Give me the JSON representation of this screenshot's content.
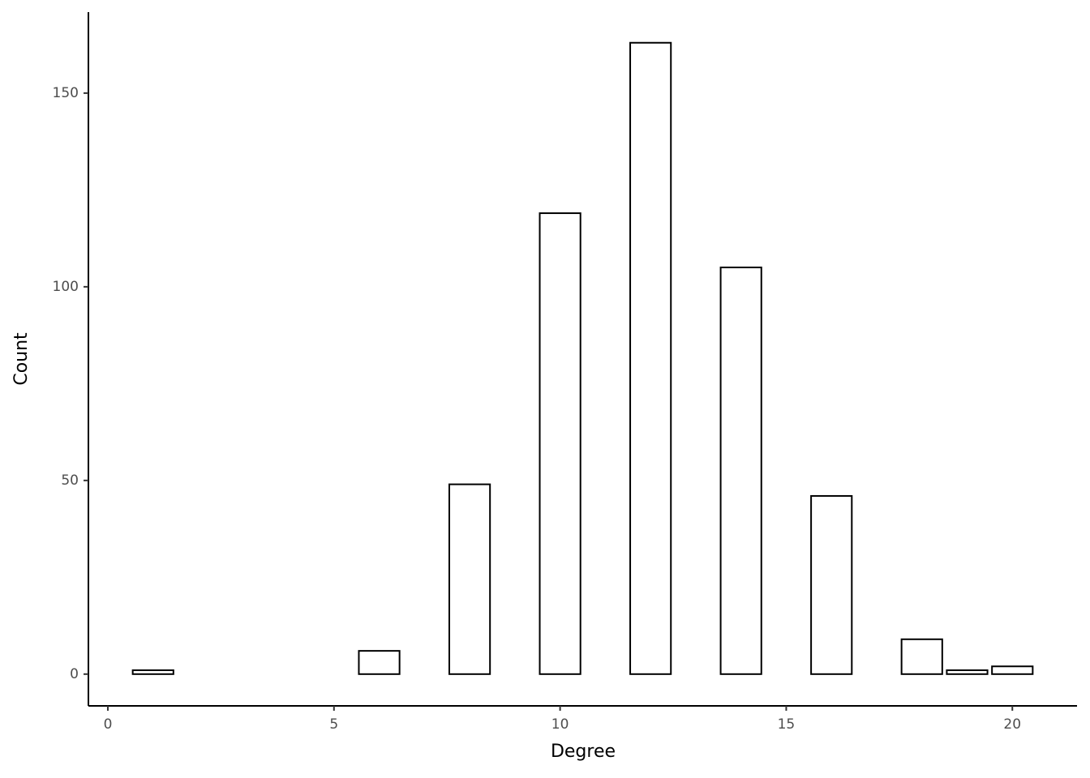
{
  "chart_data": {
    "type": "bar",
    "x_label": "Degree",
    "y_label": "Count",
    "x": [
      1,
      6,
      8,
      10,
      12,
      14,
      16,
      18,
      19,
      20
    ],
    "values": [
      1,
      6,
      49,
      119,
      163,
      105,
      46,
      9,
      1,
      2
    ],
    "color": "#ffffff",
    "edge_color": "#000000",
    "xlim": [
      -0.43,
      21.43
    ],
    "xticks": [
      0,
      5,
      10,
      15,
      20
    ],
    "ylim": [
      -8.2,
      170.9
    ],
    "yticks": [
      0,
      50,
      100,
      150
    ],
    "grid": false
  }
}
